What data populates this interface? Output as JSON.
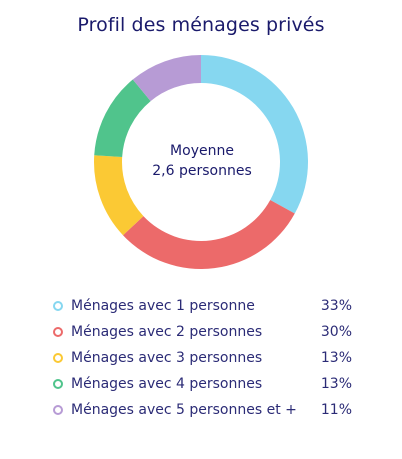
{
  "chart_data": {
    "type": "pie",
    "title": "Profil des ménages privés",
    "center_label": [
      "Moyenne",
      "2,6 personnes"
    ],
    "legend_position": "bottom",
    "slices": [
      {
        "label": "Ménages avec 1 personne",
        "value": 33,
        "value_label": "33%",
        "color": "#86d7f0"
      },
      {
        "label": "Ménages avec 2 personnes",
        "value": 30,
        "value_label": "30%",
        "color": "#ec6a6a"
      },
      {
        "label": "Ménages avec 3 personnes",
        "value": 13,
        "value_label": "13%",
        "color": "#fbc934"
      },
      {
        "label": "Ménages avec 4 personnes",
        "value": 13,
        "value_label": "13%",
        "color": "#50c48c"
      },
      {
        "label": "Ménages avec 5 personnes et +",
        "value": 11,
        "value_label": "11%",
        "color": "#b79bd5"
      }
    ]
  }
}
